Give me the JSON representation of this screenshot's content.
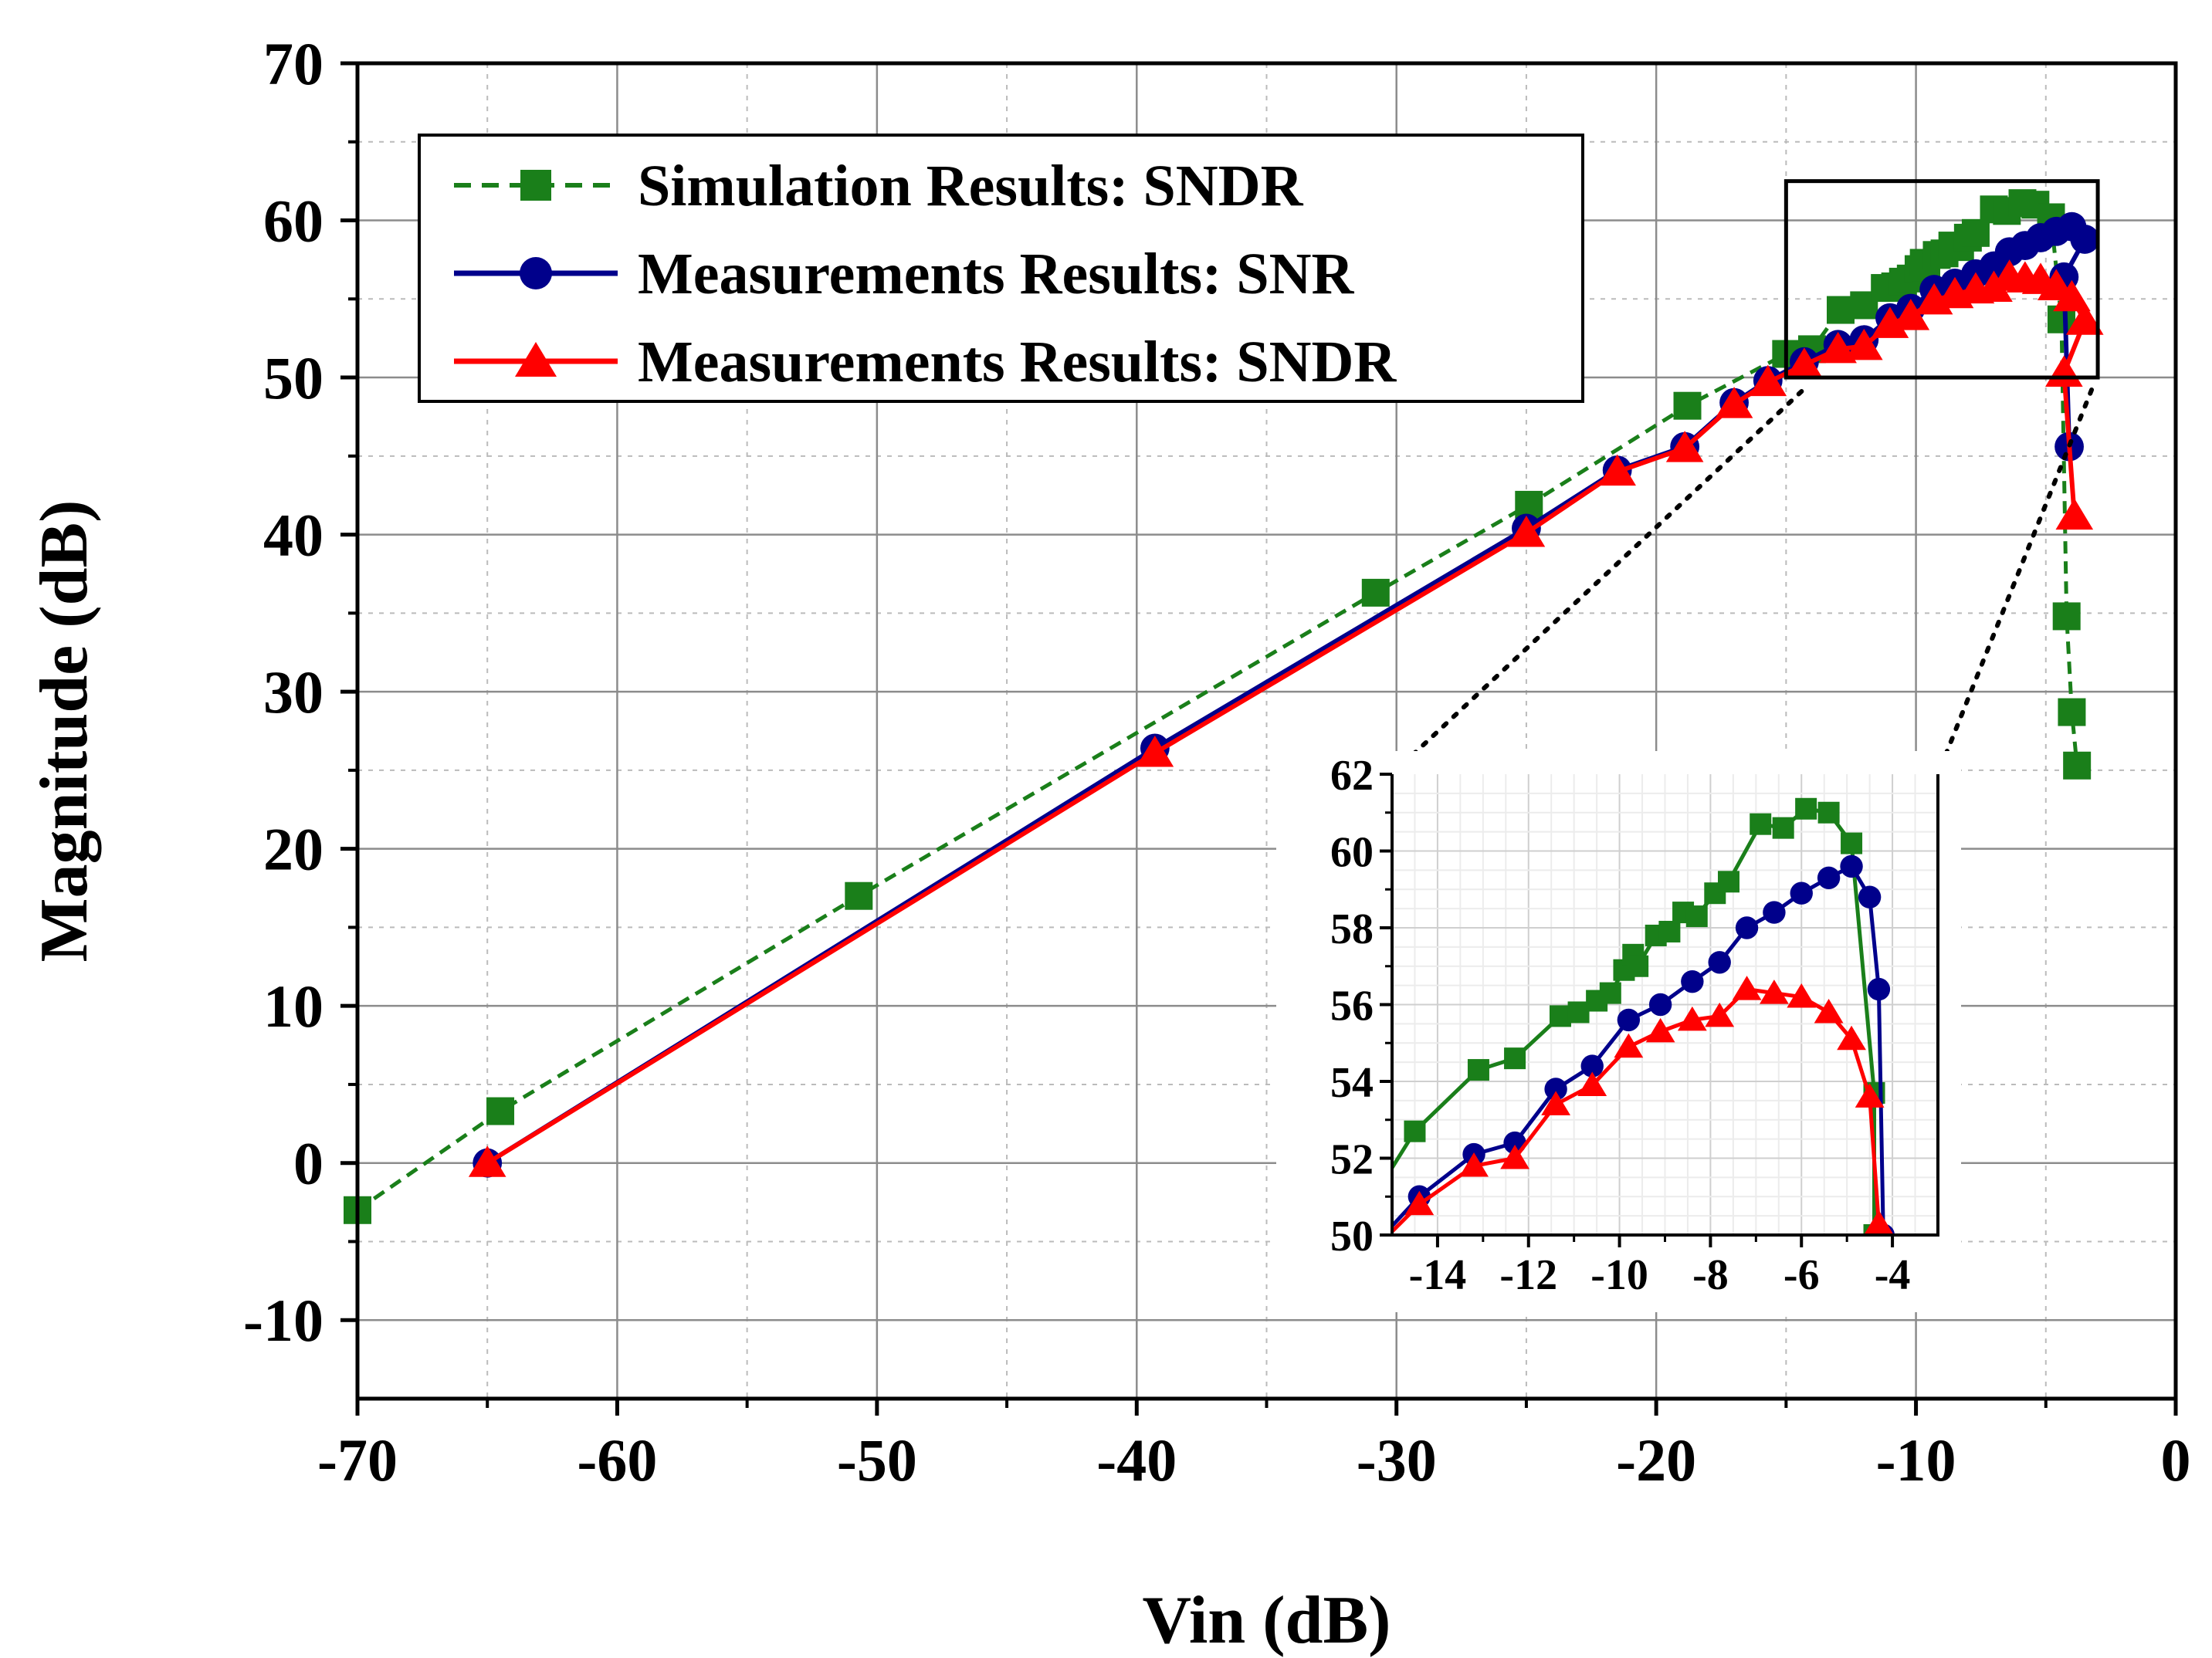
{
  "chart_data": [
    {
      "type": "line",
      "title": "",
      "xlabel": "Vin (dB)",
      "ylabel": "Magnitude (dB)",
      "xlim": [
        -70,
        0
      ],
      "ylim": [
        -15,
        70
      ],
      "x_ticks": [
        -70,
        -60,
        -50,
        -40,
        -30,
        -20,
        -10,
        0
      ],
      "y_ticks": [
        -10,
        0,
        10,
        20,
        30,
        40,
        50,
        60,
        70
      ],
      "x_tick_labels": [
        "-70",
        "-60",
        "-50",
        "-40",
        "-30",
        "-20",
        "-10",
        "0"
      ],
      "y_tick_labels": [
        "-10",
        "0",
        "10",
        "20",
        "30",
        "40",
        "50",
        "60",
        "70"
      ],
      "grid": true,
      "legend_position": "top-left",
      "series": [
        {
          "name": "Simulation Results: SNDR",
          "color": "#1a7f1a",
          "marker": "square",
          "line_style": "dashed",
          "points": [
            [
              -70,
              -3
            ],
            [
              -64.5,
              3.3
            ],
            [
              -50.7,
              17
            ],
            [
              -30.8,
              36.3
            ],
            [
              -24.9,
              41.9
            ],
            [
              -18.8,
              48.2
            ],
            [
              -15,
              51.5
            ],
            [
              -14,
              51.8
            ],
            [
              -12.9,
              54.3
            ],
            [
              -12,
              54.6
            ],
            [
              -11.2,
              55.7
            ],
            [
              -10.8,
              55.8
            ],
            [
              -10.5,
              56.1
            ],
            [
              -10.2,
              56.3
            ],
            [
              -9.9,
              56.9
            ],
            [
              -9.7,
              57.3
            ],
            [
              -9.6,
              57
            ],
            [
              -9.2,
              57.8
            ],
            [
              -8.9,
              57.9
            ],
            [
              -8.6,
              58.4
            ],
            [
              -8.3,
              58.3
            ],
            [
              -8,
              58.9
            ],
            [
              -7.7,
              59.2
            ],
            [
              -7,
              60.7
            ],
            [
              -6.5,
              60.6
            ],
            [
              -5.9,
              61.1
            ],
            [
              -5.4,
              61
            ],
            [
              -4.8,
              60.2
            ],
            [
              -4.4,
              53.7
            ],
            [
              -4.2,
              34.8
            ],
            [
              -4,
              28.7
            ],
            [
              -3.8,
              25.3
            ]
          ]
        },
        {
          "name": "Measurements Results: SNR",
          "color": "#00008b",
          "marker": "circle",
          "line_style": "solid",
          "points": [
            [
              -65,
              0
            ],
            [
              -39.3,
              26.4
            ],
            [
              -25,
              40.4
            ],
            [
              -21.5,
              44.1
            ],
            [
              -18.9,
              45.6
            ],
            [
              -17,
              48.4
            ],
            [
              -15.7,
              49.8
            ],
            [
              -14.3,
              51
            ],
            [
              -13,
              52.1
            ],
            [
              -12,
              52.4
            ],
            [
              -11,
              53.8
            ],
            [
              -10.2,
              54.4
            ],
            [
              -9.3,
              55.6
            ],
            [
              -8.5,
              56
            ],
            [
              -7.7,
              56.6
            ],
            [
              -7,
              57.1
            ],
            [
              -6.4,
              58
            ],
            [
              -5.8,
              58.4
            ],
            [
              -5.2,
              58.9
            ],
            [
              -4.6,
              59.3
            ],
            [
              -4,
              59.6
            ],
            [
              -3.5,
              58.8
            ],
            [
              -4.3,
              56.4
            ],
            [
              -4.1,
              45.6
            ]
          ]
        },
        {
          "name": "Measurements Results: SNDR",
          "color": "#ff0000",
          "marker": "triangle",
          "line_style": "solid",
          "points": [
            [
              -65,
              0
            ],
            [
              -39.3,
              26.1
            ],
            [
              -25,
              40.1
            ],
            [
              -21.5,
              44
            ],
            [
              -18.9,
              45.5
            ],
            [
              -17,
              48.3
            ],
            [
              -15.7,
              49.7
            ],
            [
              -14.3,
              50.8
            ],
            [
              -13,
              51.8
            ],
            [
              -12,
              52
            ],
            [
              -11,
              53.4
            ],
            [
              -10.2,
              53.9
            ],
            [
              -9.3,
              54.9
            ],
            [
              -8.5,
              55.3
            ],
            [
              -7.7,
              55.6
            ],
            [
              -7,
              55.7
            ],
            [
              -6.4,
              56.4
            ],
            [
              -5.8,
              56.3
            ],
            [
              -5.2,
              56.2
            ],
            [
              -4.6,
              55.8
            ],
            [
              -4,
              55.1
            ],
            [
              -3.5,
              53.6
            ],
            [
              -4.3,
              50.3
            ],
            [
              -3.9,
              41.2
            ]
          ]
        }
      ]
    },
    {
      "type": "line",
      "title": "",
      "xlabel": "",
      "ylabel": "",
      "xlim": [
        -15,
        -3
      ],
      "ylim": [
        50,
        62
      ],
      "x_ticks": [
        -14,
        -12,
        -10,
        -8,
        -6,
        -4
      ],
      "y_ticks": [
        50,
        52,
        54,
        56,
        58,
        60,
        62
      ],
      "x_tick_labels": [
        "-14",
        "-12",
        "-10",
        "-8",
        "-6",
        "-4"
      ],
      "y_tick_labels": [
        "50",
        "52",
        "54",
        "56",
        "58",
        "60",
        "62"
      ],
      "grid": true,
      "series": [
        {
          "color": "#1a7f1a",
          "marker": "square",
          "line_style": "solid",
          "points": [
            [
              -15.5,
              50.8
            ],
            [
              -14.5,
              52.7
            ],
            [
              -13.1,
              54.3
            ],
            [
              -12.3,
              54.6
            ],
            [
              -11.3,
              55.7
            ],
            [
              -10.9,
              55.8
            ],
            [
              -10.5,
              56.1
            ],
            [
              -10.2,
              56.3
            ],
            [
              -9.9,
              56.9
            ],
            [
              -9.7,
              57.3
            ],
            [
              -9.6,
              57
            ],
            [
              -9.2,
              57.8
            ],
            [
              -8.9,
              57.9
            ],
            [
              -8.6,
              58.4
            ],
            [
              -8.3,
              58.3
            ],
            [
              -7.9,
              58.9
            ],
            [
              -7.6,
              59.2
            ],
            [
              -6.9,
              60.7
            ],
            [
              -6.4,
              60.6
            ],
            [
              -5.9,
              61.1
            ],
            [
              -5.4,
              61
            ],
            [
              -4.9,
              60.2
            ],
            [
              -4.4,
              53.7
            ],
            [
              -4.4,
              50
            ]
          ]
        },
        {
          "color": "#00008b",
          "marker": "circle",
          "line_style": "solid",
          "points": [
            [
              -15.5,
              49.6
            ],
            [
              -14.4,
              51
            ],
            [
              -13.2,
              52.1
            ],
            [
              -12.3,
              52.4
            ],
            [
              -11.4,
              53.8
            ],
            [
              -10.6,
              54.4
            ],
            [
              -9.8,
              55.6
            ],
            [
              -9.1,
              56
            ],
            [
              -8.4,
              56.6
            ],
            [
              -7.8,
              57.1
            ],
            [
              -7.2,
              58
            ],
            [
              -6.6,
              58.4
            ],
            [
              -6,
              58.9
            ],
            [
              -5.4,
              59.3
            ],
            [
              -4.9,
              59.6
            ],
            [
              -4.5,
              58.8
            ],
            [
              -4.3,
              56.4
            ],
            [
              -4.2,
              50
            ]
          ]
        },
        {
          "color": "#ff0000",
          "marker": "triangle",
          "line_style": "solid",
          "points": [
            [
              -15.5,
              49.5
            ],
            [
              -14.4,
              50.8
            ],
            [
              -13.2,
              51.8
            ],
            [
              -12.3,
              52
            ],
            [
              -11.4,
              53.4
            ],
            [
              -10.6,
              53.9
            ],
            [
              -9.8,
              54.9
            ],
            [
              -9.1,
              55.3
            ],
            [
              -8.4,
              55.6
            ],
            [
              -7.8,
              55.7
            ],
            [
              -7.2,
              56.4
            ],
            [
              -6.6,
              56.3
            ],
            [
              -6,
              56.2
            ],
            [
              -5.4,
              55.8
            ],
            [
              -4.9,
              55.1
            ],
            [
              -4.5,
              53.6
            ],
            [
              -4.3,
              50.3
            ]
          ]
        }
      ]
    }
  ],
  "legend": {
    "items": [
      "Simulation Results: SNDR",
      "Measurements Results: SNR",
      "Measurements Results: SNDR"
    ]
  },
  "zoom_box": {
    "xlim": [
      -15,
      -3
    ],
    "ylim": [
      50,
      62.5
    ]
  }
}
